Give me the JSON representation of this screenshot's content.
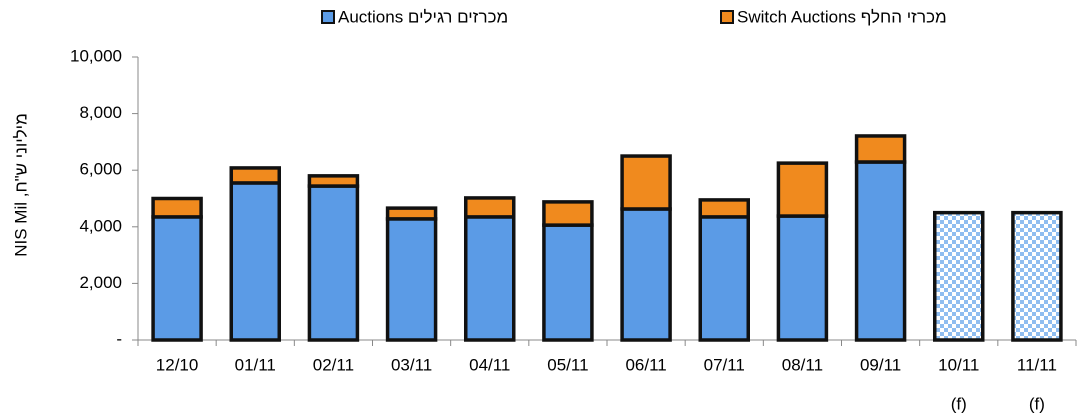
{
  "chart_data": {
    "type": "stacked_bar",
    "categories": [
      "12/10",
      "01/11",
      "02/11",
      "03/11",
      "04/11",
      "05/11",
      "06/11",
      "07/11",
      "08/11",
      "09/11",
      "10/11",
      "11/11"
    ],
    "category_sublabels": [
      null,
      null,
      null,
      null,
      null,
      null,
      null,
      null,
      null,
      null,
      "(f)",
      "(f)"
    ],
    "series": [
      {
        "name": "מכרזים רגילים Auctions",
        "color": "#5b9be6",
        "values": [
          4350,
          5550,
          5440,
          4280,
          4350,
          4060,
          4630,
          4350,
          4380,
          6290,
          4500,
          4500
        ],
        "pattern": [
          false,
          false,
          false,
          false,
          false,
          false,
          false,
          false,
          false,
          false,
          true,
          true
        ]
      },
      {
        "name": "מכרזי החלף Switch Auctions",
        "color": "#f08a1e",
        "values": [
          650,
          530,
          360,
          380,
          670,
          820,
          1870,
          600,
          1870,
          920,
          null,
          null
        ]
      }
    ],
    "y_label": "מיליוני ש\"ח, NIS Mil",
    "ylim": [
      0,
      10000
    ],
    "yticks": [
      {
        "value": 0,
        "label": "-"
      },
      {
        "value": 2000,
        "label": "2,000"
      },
      {
        "value": 4000,
        "label": "4,000"
      },
      {
        "value": 6000,
        "label": "6,000"
      },
      {
        "value": 8000,
        "label": "8,000"
      },
      {
        "value": 10000,
        "label": "10,000"
      }
    ]
  }
}
